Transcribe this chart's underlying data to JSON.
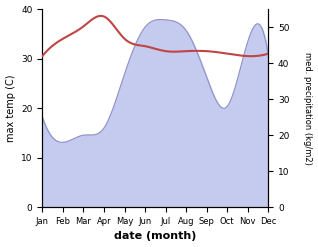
{
  "months": [
    "Jan",
    "Feb",
    "Mar",
    "Apr",
    "May",
    "Jun",
    "Jul",
    "Aug",
    "Sep",
    "Oct",
    "Nov",
    "Dec"
  ],
  "temp": [
    30.5,
    34.0,
    36.5,
    38.5,
    34.0,
    32.5,
    31.5,
    31.5,
    31.5,
    31.0,
    30.5,
    31.0
  ],
  "precip": [
    25,
    18,
    20,
    22,
    37,
    50,
    52,
    49,
    36,
    28,
    46,
    42
  ],
  "temp_color": "#c04545",
  "precip_line_color": "#9090c8",
  "precip_fill_color": "#c5cbee",
  "ylabel_left": "max temp (C)",
  "ylabel_right": "med. precipitation (kg/m2)",
  "xlabel": "date (month)",
  "ylim_left": [
    0,
    40
  ],
  "ylim_right": [
    0,
    55
  ],
  "yticks_left": [
    0,
    10,
    20,
    30,
    40
  ],
  "yticks_right": [
    0,
    10,
    20,
    30,
    40,
    50
  ],
  "bg_color": "#ffffff"
}
